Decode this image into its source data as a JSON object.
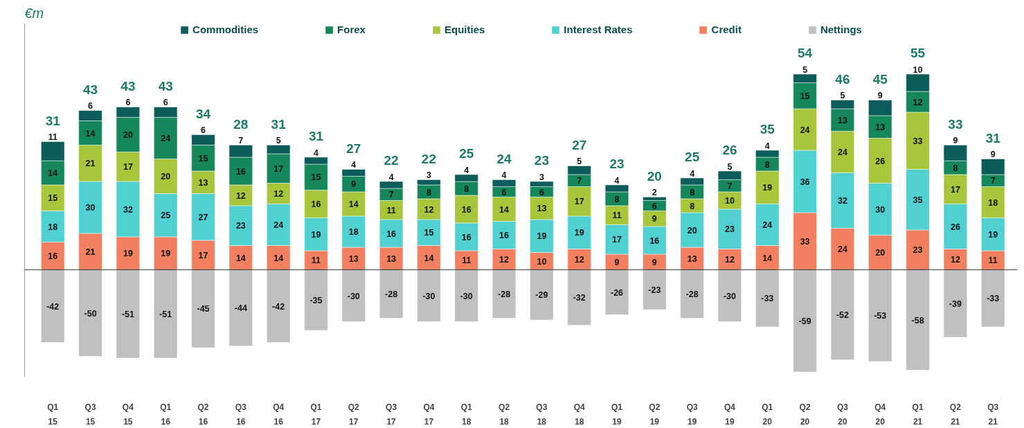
{
  "chart_data": {
    "type": "bar",
    "stacked": true,
    "annotations": [
      "€m"
    ],
    "ylim": [
      -62,
      142
    ],
    "categories": [
      "Q1\n15",
      "Q3\n15",
      "Q4\n15",
      "Q1\n16",
      "Q2\n16",
      "Q3\n16",
      "Q4\n16",
      "Q1\n17",
      "Q2\n17",
      "Q3\n17",
      "Q4\n17",
      "Q1\n18",
      "Q2\n18",
      "Q3\n18",
      "Q4\n18",
      "Q1\n19",
      "Q2\n19",
      "Q3\n19",
      "Q4\n19",
      "Q1\n20",
      "Q2\n20",
      "Q3\n20",
      "Q4\n20",
      "Q1\n21",
      "Q2\n21",
      "Q3\n21"
    ],
    "series": [
      {
        "name": "Credit",
        "color": "#f08060",
        "values": [
          16,
          21,
          19,
          19,
          17,
          14,
          14,
          11,
          13,
          13,
          14,
          11,
          12,
          10,
          12,
          9,
          9,
          13,
          12,
          14,
          33,
          24,
          20,
          23,
          12,
          11
        ]
      },
      {
        "name": "Interest Rates",
        "color": "#50d0d0",
        "values": [
          18,
          30,
          32,
          25,
          27,
          23,
          24,
          19,
          18,
          16,
          15,
          16,
          16,
          19,
          19,
          17,
          16,
          20,
          23,
          24,
          36,
          32,
          30,
          35,
          26,
          19
        ]
      },
      {
        "name": "Equities",
        "color": "#a8c63c",
        "values": [
          15,
          21,
          17,
          20,
          13,
          12,
          12,
          16,
          14,
          11,
          12,
          16,
          14,
          13,
          17,
          11,
          9,
          8,
          10,
          19,
          24,
          24,
          26,
          33,
          17,
          18
        ]
      },
      {
        "name": "Forex",
        "color": "#15875a",
        "values": [
          14,
          14,
          20,
          24,
          15,
          16,
          17,
          15,
          9,
          7,
          8,
          8,
          6,
          6,
          7,
          8,
          6,
          8,
          7,
          8,
          15,
          13,
          13,
          12,
          8,
          7
        ]
      },
      {
        "name": "Commodities",
        "color": "#0d5c5c",
        "values": [
          11,
          6,
          6,
          6,
          6,
          7,
          5,
          4,
          4,
          4,
          3,
          4,
          4,
          3,
          5,
          4,
          2,
          4,
          5,
          4,
          5,
          5,
          9,
          10,
          9,
          9
        ]
      },
      {
        "name": "Nettings",
        "color": "#c0c0c0",
        "values": [
          -42,
          -50,
          -51,
          -51,
          -45,
          -44,
          -42,
          -35,
          -30,
          -28,
          -30,
          -30,
          -28,
          -29,
          -32,
          -26,
          -23,
          -28,
          -30,
          -33,
          -59,
          -52,
          -53,
          -58,
          -39,
          -33
        ]
      }
    ],
    "totals": [
      "31",
      "43",
      "43",
      "43",
      "34",
      "28",
      "31",
      "31",
      "27",
      "22",
      "22",
      "25",
      "24",
      "23",
      "27",
      "23",
      "20",
      "25",
      "26",
      "35",
      "54",
      "46",
      "45",
      "55",
      "33",
      "31"
    ],
    "data_labels": true,
    "legend": "top",
    "grid": false,
    "tick_labels": "x"
  }
}
